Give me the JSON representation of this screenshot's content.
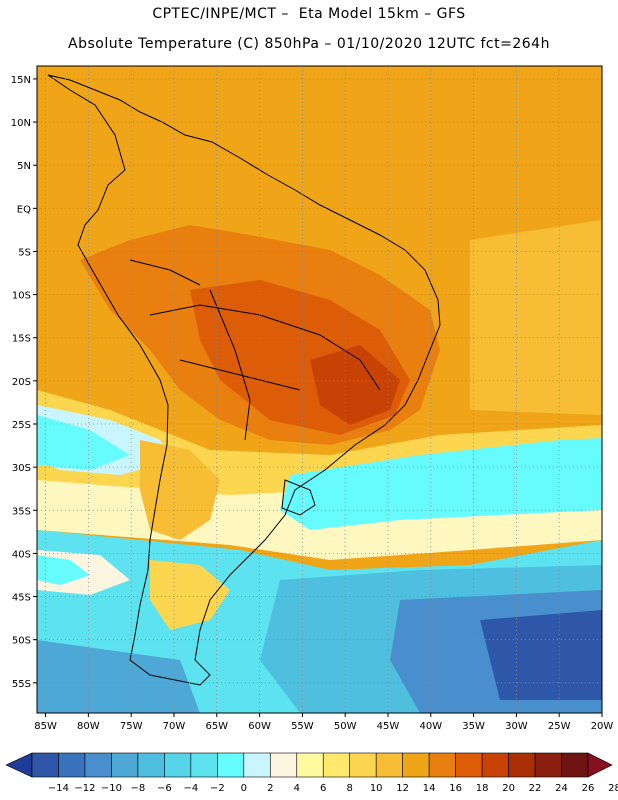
{
  "header": {
    "line1": "CPTEC/INPE/MCT –  Eta Model 15km – GFS",
    "line2": "Absolute Temperature (C) 850hPa – 01/10/2020 12UTC fct=264h"
  },
  "map": {
    "lat_ticks": [
      "15N",
      "10N",
      "5N",
      "EQ",
      "5S",
      "10S",
      "15S",
      "20S",
      "25S",
      "30S",
      "35S",
      "40S",
      "45S",
      "50S",
      "55S"
    ],
    "lon_ticks": [
      "85W",
      "80W",
      "75W",
      "70W",
      "65W",
      "60W",
      "55W",
      "50W",
      "45W",
      "40W",
      "35W",
      "30W",
      "25W",
      "20W"
    ],
    "lon_range": [
      -86,
      -20
    ],
    "lat_range": [
      16.5,
      -58.5
    ],
    "grid": "dotted"
  },
  "colorbar": {
    "labels": [
      "-14",
      "-12",
      "-10",
      "-8",
      "-6",
      "-4",
      "-2",
      "0",
      "2",
      "4",
      "6",
      "8",
      "10",
      "12",
      "14",
      "16",
      "18",
      "20",
      "22",
      "24",
      "26",
      "28"
    ],
    "colors": [
      "#1e3c96",
      "#2e57aa",
      "#3a73bd",
      "#4a8fcd",
      "#4ea8d6",
      "#4fbfe0",
      "#55d3e8",
      "#5de3ef",
      "#66fbff",
      "#c8f5ff",
      "#fdf5e0",
      "#fffaa0",
      "#ffe96d",
      "#fcd64f",
      "#f7bd34",
      "#f0a519",
      "#e87f0f",
      "#dc5c08",
      "#c84206",
      "#aa2e06",
      "#8c2010",
      "#6e1412",
      "#87101e"
    ]
  }
}
